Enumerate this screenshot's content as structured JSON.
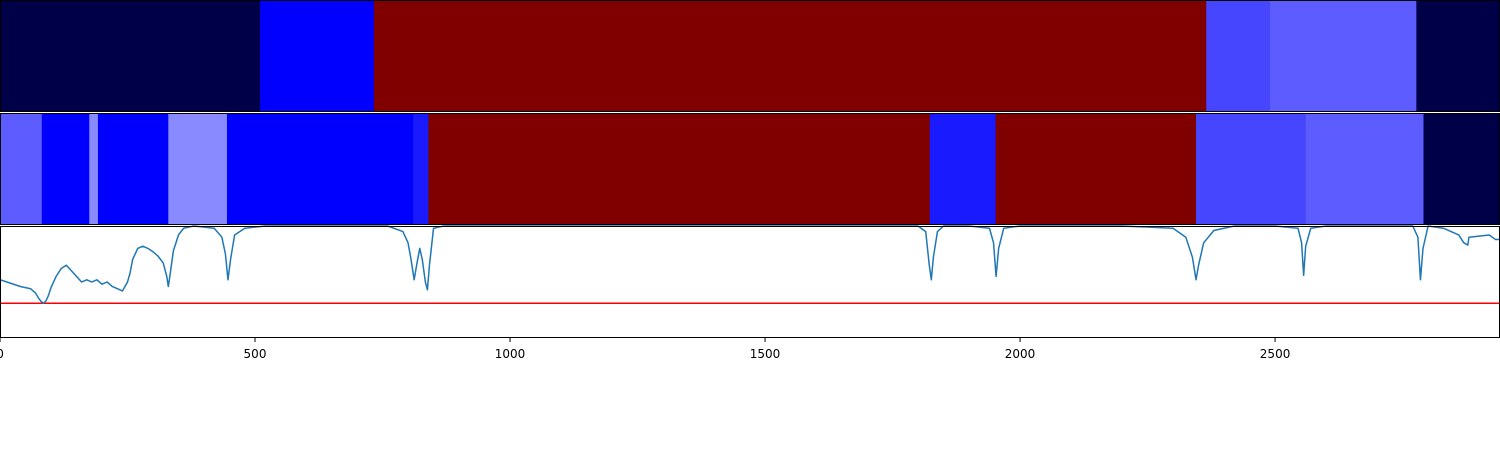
{
  "chart_data": {
    "type": "segmentation-strip",
    "x_range": [
      0,
      2941
    ],
    "x_ticks": [
      0,
      500,
      1000,
      1500,
      2000,
      2500
    ],
    "x_tick_labels": [
      "0",
      "500",
      "1000",
      "1500",
      "2000",
      "2500"
    ],
    "tracks": [
      {
        "segments": [
          {
            "start": 0,
            "end": 510,
            "color": "#000048"
          },
          {
            "start": 510,
            "end": 733,
            "color": "#0000ff"
          },
          {
            "start": 733,
            "end": 2365,
            "color": "#800000"
          },
          {
            "start": 2365,
            "end": 2490,
            "color": "#4646ff"
          },
          {
            "start": 2490,
            "end": 2777,
            "color": "#5c5cff"
          },
          {
            "start": 2777,
            "end": 2941,
            "color": "#000048"
          }
        ]
      },
      {
        "segments": [
          {
            "start": 0,
            "end": 82,
            "color": "#5c5cff"
          },
          {
            "start": 82,
            "end": 175,
            "color": "#0000ff"
          },
          {
            "start": 175,
            "end": 192,
            "color": "#8a8aff"
          },
          {
            "start": 192,
            "end": 330,
            "color": "#0000ff"
          },
          {
            "start": 330,
            "end": 445,
            "color": "#8a8aff"
          },
          {
            "start": 445,
            "end": 810,
            "color": "#0000ff"
          },
          {
            "start": 810,
            "end": 840,
            "color": "#1a1aff"
          },
          {
            "start": 840,
            "end": 1823,
            "color": "#800000"
          },
          {
            "start": 1823,
            "end": 1952,
            "color": "#1a1aff"
          },
          {
            "start": 1952,
            "end": 2345,
            "color": "#800000"
          },
          {
            "start": 2345,
            "end": 2560,
            "color": "#4646ff"
          },
          {
            "start": 2560,
            "end": 2791,
            "color": "#5c5cff"
          },
          {
            "start": 2791,
            "end": 2941,
            "color": "#000048"
          }
        ]
      }
    ],
    "signal": {
      "color": "#1f77b4",
      "y_range": [
        0,
        1
      ],
      "threshold": 0.31,
      "threshold_color": "#ff0000",
      "points": [
        [
          0,
          0.52
        ],
        [
          20,
          0.49
        ],
        [
          40,
          0.46
        ],
        [
          60,
          0.44
        ],
        [
          70,
          0.4
        ],
        [
          75,
          0.36
        ],
        [
          80,
          0.33
        ],
        [
          85,
          0.31
        ],
        [
          90,
          0.33
        ],
        [
          95,
          0.38
        ],
        [
          100,
          0.45
        ],
        [
          110,
          0.55
        ],
        [
          120,
          0.62
        ],
        [
          130,
          0.65
        ],
        [
          140,
          0.6
        ],
        [
          150,
          0.55
        ],
        [
          160,
          0.5
        ],
        [
          170,
          0.52
        ],
        [
          180,
          0.5
        ],
        [
          190,
          0.52
        ],
        [
          200,
          0.48
        ],
        [
          210,
          0.5
        ],
        [
          220,
          0.46
        ],
        [
          230,
          0.44
        ],
        [
          240,
          0.42
        ],
        [
          250,
          0.5
        ],
        [
          255,
          0.58
        ],
        [
          260,
          0.7
        ],
        [
          270,
          0.8
        ],
        [
          280,
          0.82
        ],
        [
          290,
          0.8
        ],
        [
          300,
          0.77
        ],
        [
          310,
          0.73
        ],
        [
          320,
          0.67
        ],
        [
          327,
          0.55
        ],
        [
          330,
          0.46
        ],
        [
          333,
          0.55
        ],
        [
          340,
          0.78
        ],
        [
          350,
          0.92
        ],
        [
          360,
          0.98
        ],
        [
          380,
          1.0
        ],
        [
          420,
          0.98
        ],
        [
          435,
          0.9
        ],
        [
          442,
          0.75
        ],
        [
          447,
          0.52
        ],
        [
          452,
          0.7
        ],
        [
          460,
          0.92
        ],
        [
          480,
          0.98
        ],
        [
          520,
          1.0
        ],
        [
          600,
          1.0
        ],
        [
          760,
          1.0
        ],
        [
          790,
          0.95
        ],
        [
          800,
          0.85
        ],
        [
          806,
          0.7
        ],
        [
          812,
          0.52
        ],
        [
          818,
          0.68
        ],
        [
          823,
          0.8
        ],
        [
          828,
          0.7
        ],
        [
          834,
          0.5
        ],
        [
          838,
          0.43
        ],
        [
          842,
          0.65
        ],
        [
          850,
          0.98
        ],
        [
          870,
          1.0
        ],
        [
          1000,
          1.0
        ],
        [
          1500,
          1.0
        ],
        [
          1800,
          1.0
        ],
        [
          1815,
          0.95
        ],
        [
          1822,
          0.65
        ],
        [
          1826,
          0.52
        ],
        [
          1830,
          0.72
        ],
        [
          1838,
          0.95
        ],
        [
          1850,
          1.0
        ],
        [
          1900,
          1.0
        ],
        [
          1940,
          0.98
        ],
        [
          1948,
          0.85
        ],
        [
          1953,
          0.55
        ],
        [
          1958,
          0.8
        ],
        [
          1968,
          0.98
        ],
        [
          2000,
          1.0
        ],
        [
          2200,
          1.0
        ],
        [
          2300,
          0.98
        ],
        [
          2325,
          0.9
        ],
        [
          2338,
          0.72
        ],
        [
          2345,
          0.52
        ],
        [
          2350,
          0.65
        ],
        [
          2360,
          0.85
        ],
        [
          2380,
          0.96
        ],
        [
          2420,
          1.0
        ],
        [
          2500,
          1.0
        ],
        [
          2545,
          0.98
        ],
        [
          2552,
          0.85
        ],
        [
          2556,
          0.56
        ],
        [
          2560,
          0.82
        ],
        [
          2570,
          0.98
        ],
        [
          2600,
          1.0
        ],
        [
          2770,
          1.0
        ],
        [
          2780,
          0.9
        ],
        [
          2785,
          0.52
        ],
        [
          2790,
          0.8
        ],
        [
          2800,
          1.0
        ],
        [
          2830,
          0.98
        ],
        [
          2860,
          0.92
        ],
        [
          2870,
          0.85
        ],
        [
          2878,
          0.83
        ],
        [
          2880,
          0.9
        ],
        [
          2900,
          0.91
        ],
        [
          2920,
          0.92
        ],
        [
          2932,
          0.88
        ],
        [
          2941,
          0.88
        ]
      ]
    }
  }
}
